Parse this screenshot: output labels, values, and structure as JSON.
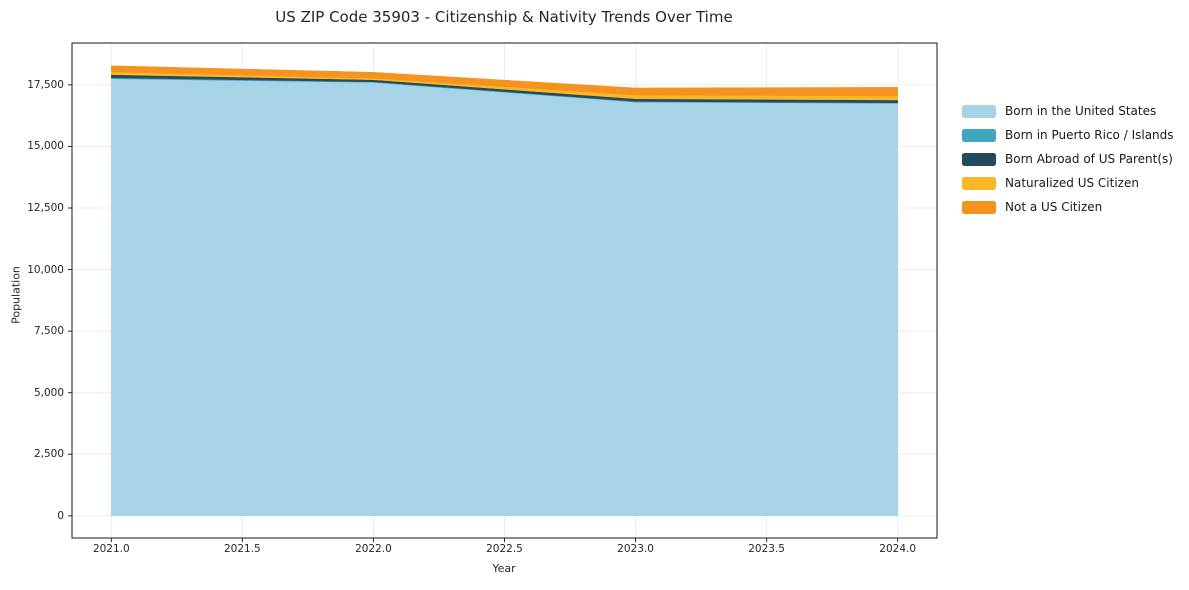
{
  "title": "US ZIP Code 35903 - Citizenship & Nativity Trends Over Time",
  "axes": {
    "xlabel": "Year",
    "ylabel": "Population",
    "x_ticks": [
      {
        "value": 2021.0,
        "label": "2021.0"
      },
      {
        "value": 2021.5,
        "label": "2021.5"
      },
      {
        "value": 2022.0,
        "label": "2022.0"
      },
      {
        "value": 2022.5,
        "label": "2022.5"
      },
      {
        "value": 2023.0,
        "label": "2023.0"
      },
      {
        "value": 2023.5,
        "label": "2023.5"
      },
      {
        "value": 2024.0,
        "label": "2024.0"
      }
    ],
    "y_ticks": [
      {
        "value": 0,
        "label": "0"
      },
      {
        "value": 2500,
        "label": "2,500"
      },
      {
        "value": 5000,
        "label": "5,000"
      },
      {
        "value": 7500,
        "label": "7,500"
      },
      {
        "value": 10000,
        "label": "10,000"
      },
      {
        "value": 12500,
        "label": "12,500"
      },
      {
        "value": 15000,
        "label": "15,000"
      },
      {
        "value": 17500,
        "label": "17,500"
      }
    ]
  },
  "legend": {
    "position": "right-outside",
    "items": [
      {
        "label": "Born in the United States",
        "color": "#a7d3e6"
      },
      {
        "label": "Born in Puerto Rico / Islands",
        "color": "#3fa5c1"
      },
      {
        "label": "Born Abroad of US Parent(s)",
        "color": "#254a5d"
      },
      {
        "label": "Naturalized US Citizen",
        "color": "#fbb726"
      },
      {
        "label": "Not a US Citizen",
        "color": "#f6921e"
      }
    ]
  },
  "chart_data": {
    "type": "area",
    "stacked": true,
    "title": "US ZIP Code 35903 - Citizenship & Nativity Trends Over Time",
    "xlabel": "Year",
    "ylabel": "Population",
    "x": [
      2021,
      2022,
      2023,
      2024
    ],
    "series": [
      {
        "name": "Born in the United States",
        "color": "#a7d3e6",
        "values": [
          17750,
          17600,
          16800,
          16750
        ]
      },
      {
        "name": "Born in Puerto Rico / Islands",
        "color": "#3fa5c1",
        "values": [
          40,
          25,
          30,
          25
        ]
      },
      {
        "name": "Born Abroad of US Parent(s)",
        "color": "#254a5d",
        "values": [
          125,
          85,
          105,
          110
        ]
      },
      {
        "name": "Naturalized US Citizen",
        "color": "#fbb726",
        "values": [
          110,
          60,
          150,
          165
        ]
      },
      {
        "name": "Not a US Citizen",
        "color": "#f6921e",
        "values": [
          250,
          240,
          290,
          350
        ]
      }
    ],
    "totals": [
      18275,
      18010,
      17375,
      17400
    ],
    "xlim": [
      2020.85,
      2024.15
    ],
    "ylim": [
      -900,
      19200
    ],
    "grid": true,
    "gridcolor": "#ececec",
    "legend_position": "right-outside"
  },
  "style": {
    "spine_color": "#1a1a1a",
    "tick_color": "#262626",
    "background": "#ffffff"
  }
}
